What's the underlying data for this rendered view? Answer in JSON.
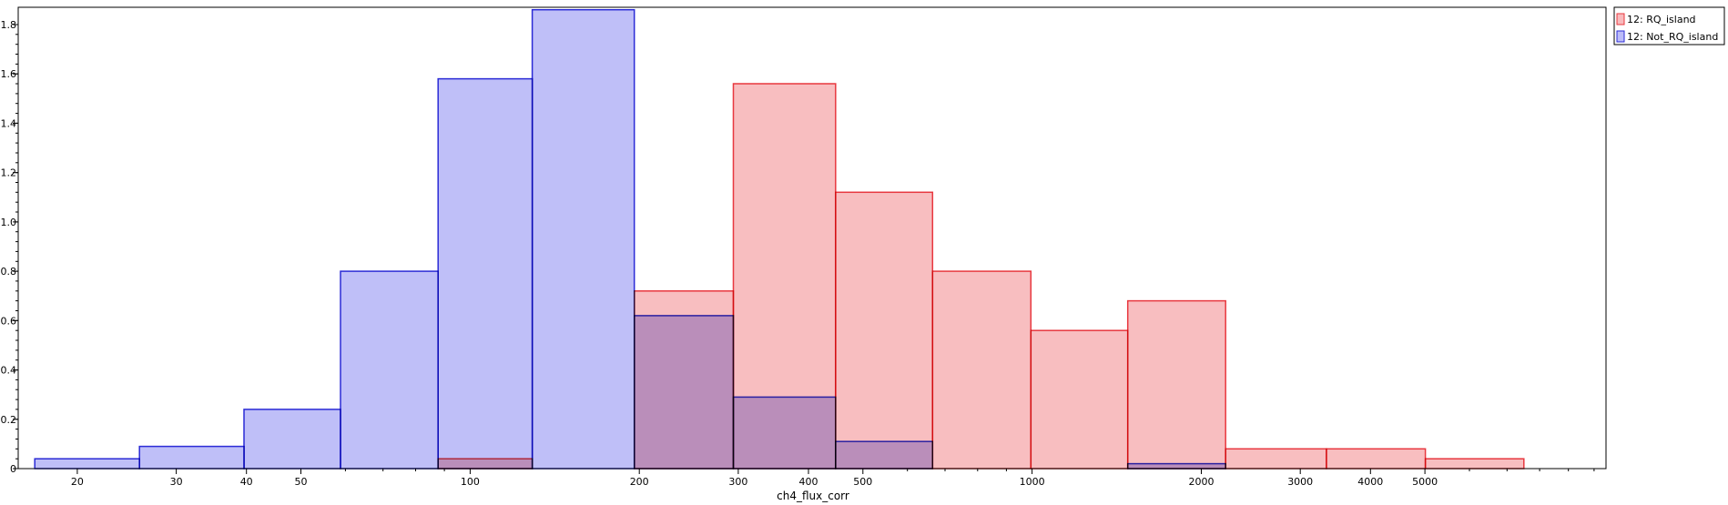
{
  "chart_data": {
    "type": "bar",
    "title": "",
    "xlabel": "ch4_flux_corr",
    "ylabel": "",
    "x_scale": "log",
    "xlim": [
      15.7,
      10500
    ],
    "ylim": [
      0,
      1.87
    ],
    "x_ticks": [
      20,
      30,
      40,
      50,
      100,
      200,
      300,
      400,
      500,
      1000,
      2000,
      3000,
      4000,
      5000
    ],
    "y_ticks": [
      0,
      0.2,
      0.4,
      0.6,
      0.8,
      1.0,
      1.2,
      1.4,
      1.6,
      1.8
    ],
    "y_tick_labels": [
      "0",
      "0.2",
      "0.4",
      "0.6",
      "0.8",
      "1.0",
      "1.2",
      "1.4",
      "1.6",
      "1.8"
    ],
    "bin_edges": [
      16.8,
      25.8,
      39.6,
      58.8,
      87.7,
      129.0,
      196.0,
      294.0,
      447.0,
      665.0,
      995.0,
      1480.0,
      2210.0,
      3340.0,
      5010.0,
      7500.0
    ],
    "grid": false,
    "legend_position": "top-right-outside",
    "series": [
      {
        "name": "12: RQ_island",
        "stroke": "#e8383f",
        "fill": "#f8babd",
        "values": [
          0,
          0,
          0,
          0,
          0.04,
          0,
          0.72,
          1.56,
          1.12,
          0.8,
          0.56,
          0.68,
          0.08,
          0.08,
          0.04
        ]
      },
      {
        "name": "12: Not_RQ_island",
        "stroke": "#2b2bd6",
        "fill": "#bcbcf8",
        "values": [
          0.04,
          0.09,
          0.24,
          0.8,
          1.58,
          1.86,
          0.62,
          0.29,
          0.11,
          0,
          0,
          0.02,
          0,
          0,
          0
        ]
      }
    ]
  }
}
